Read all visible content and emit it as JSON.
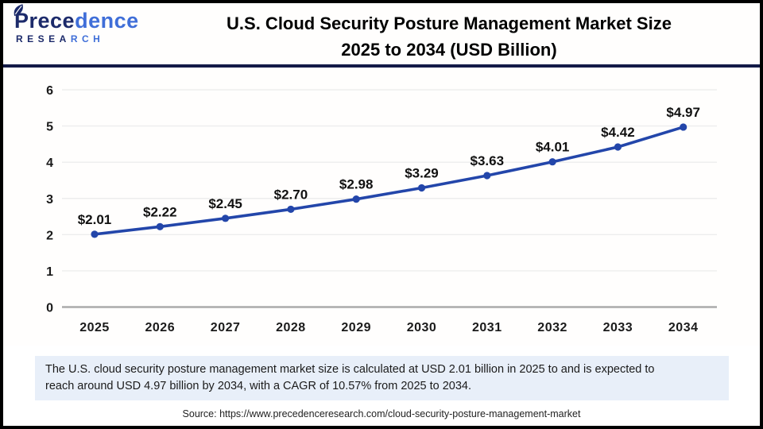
{
  "header": {
    "logo": {
      "name_part1": "Prece",
      "name_part2": "dence",
      "subtitle_part1": "RESEA",
      "subtitle_part2": "RCH",
      "navy": "#1c2a6a",
      "blue": "#3f6ed8"
    },
    "title_line1": "U.S. Cloud Security Posture Management Market Size",
    "title_line2": "2025 to 2034 (USD Billion)"
  },
  "chart_data": {
    "type": "line",
    "title": "U.S. Cloud Security Posture Management Market Size 2025 to 2034 (USD Billion)",
    "categories": [
      "2025",
      "2026",
      "2027",
      "2028",
      "2029",
      "2030",
      "2031",
      "2032",
      "2033",
      "2034"
    ],
    "values": [
      2.01,
      2.22,
      2.45,
      2.7,
      2.98,
      3.29,
      3.63,
      4.01,
      4.42,
      4.97
    ],
    "point_labels": [
      "$2.01",
      "$2.22",
      "$2.45",
      "$2.70",
      "$2.98",
      "$3.29",
      "$3.63",
      "$4.01",
      "$4.42",
      "$4.97"
    ],
    "xlabel": "",
    "ylabel": "",
    "ylim": [
      0,
      6
    ],
    "yticks": [
      0,
      1,
      2,
      3,
      4,
      5,
      6
    ],
    "grid": true,
    "legend": "none",
    "line_color": "#2346aa",
    "grid_color": "#ededed",
    "baseline_color": "#ababab",
    "point_label_color": "#111111",
    "axis_label_color": "#1a1a1a"
  },
  "footer": {
    "description_line1": "The U.S. cloud security posture management market size is calculated at USD 2.01 billion in 2025 to and is expected to",
    "description_line2": "reach around USD 4.97 billion by 2034, with a CAGR of 10.57% from 2025 to 2034.",
    "source": "Source: https://www.precedenceresearch.com/cloud-security-posture-management-market"
  }
}
